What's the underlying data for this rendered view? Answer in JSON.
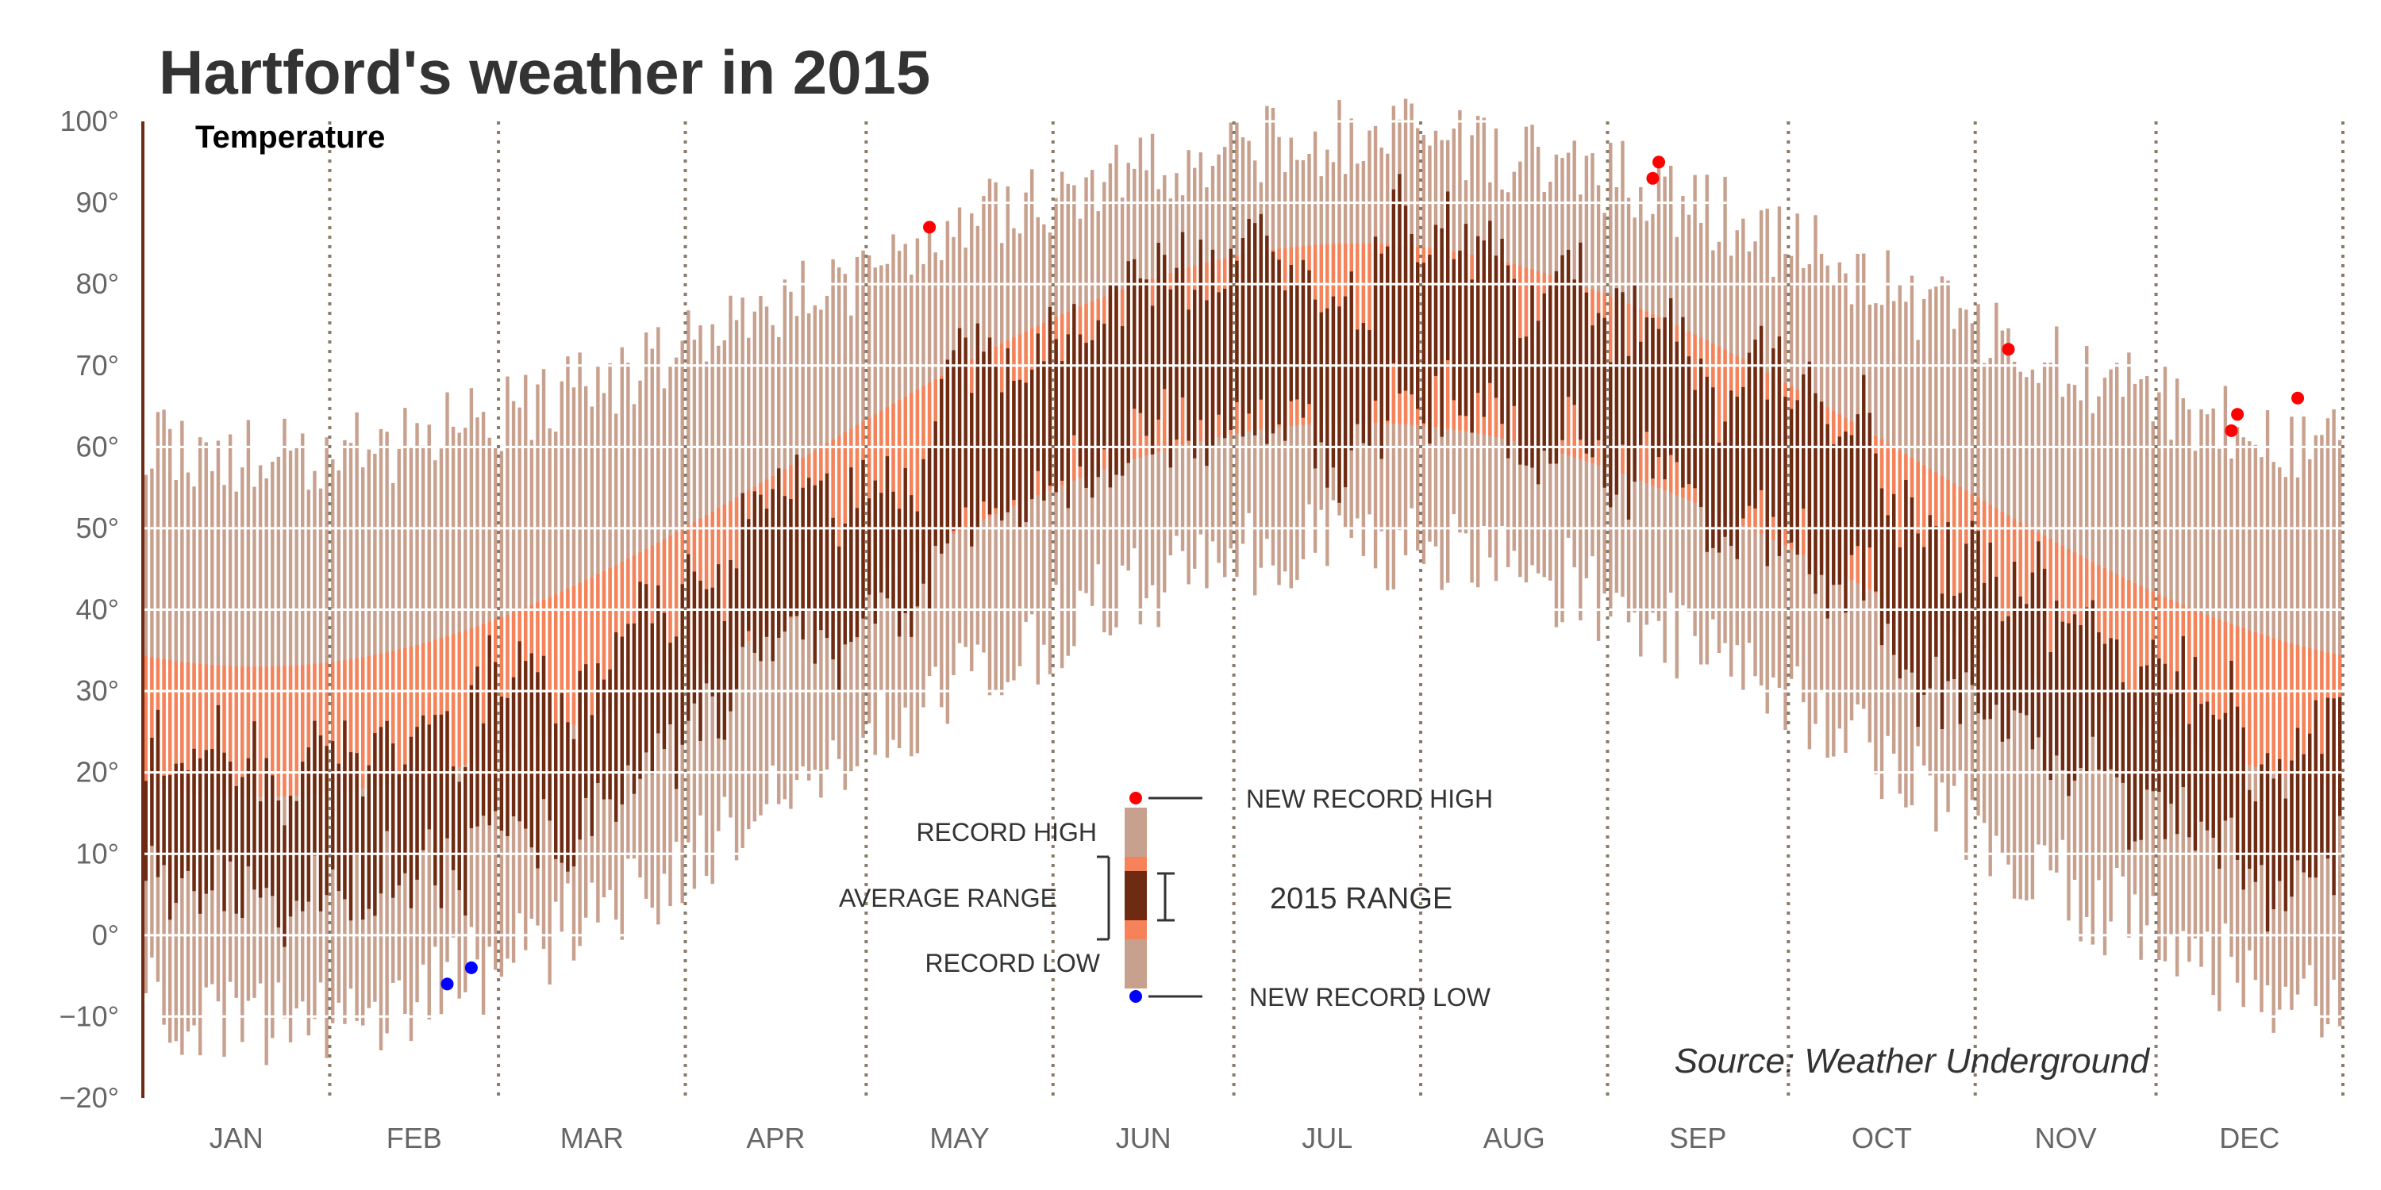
{
  "chart_data": {
    "type": "bar",
    "title": "Hartford's weather in 2015",
    "subtitle": "Temperature",
    "source": "Source: Weather Underground",
    "ylim": [
      -20,
      100
    ],
    "yticks": [
      -20,
      -10,
      0,
      10,
      20,
      30,
      40,
      50,
      60,
      70,
      80,
      90,
      100
    ],
    "ytick_labels": [
      "−20°",
      "−10°",
      "0°",
      "10°",
      "20°",
      "30°",
      "40°",
      "50°",
      "60°",
      "70°",
      "80°",
      "90°",
      "100°"
    ],
    "months": [
      "JAN",
      "FEB",
      "MAR",
      "APR",
      "MAY",
      "JUN",
      "JUL",
      "AUG",
      "SEP",
      "OCT",
      "NOV",
      "DEC"
    ],
    "month_days": [
      31,
      28,
      31,
      30,
      31,
      30,
      31,
      31,
      30,
      31,
      30,
      31
    ],
    "grid": true,
    "colors": {
      "record": "#c8a08e",
      "average": "#f58258",
      "actual": "#6e2b12",
      "record_high": "#ff0000",
      "record_low": "#0000ff",
      "grid": "#ffffff",
      "month_divider": "#8a7a66",
      "text": "#333333"
    },
    "seasonal_model": {
      "record_high": {
        "min": 59,
        "max": 98
      },
      "average_high": {
        "min": 33,
        "max": 85
      },
      "average_low": {
        "min": 17,
        "max": 63
      },
      "record_low": {
        "min": -10,
        "max": 48
      },
      "actual_high": {
        "min": 22,
        "max": 84
      },
      "actual_low": {
        "min": 5,
        "max": 64
      }
    },
    "new_record_highs": [
      {
        "date": "May 11",
        "temp": 87
      },
      {
        "date": "Sep 8",
        "temp": 93
      },
      {
        "date": "Sep 9",
        "temp": 95
      },
      {
        "date": "Nov 6",
        "temp": 72
      },
      {
        "date": "Dec 13",
        "temp": 62
      },
      {
        "date": "Dec 14",
        "temp": 64
      },
      {
        "date": "Dec 24",
        "temp": 66
      }
    ],
    "new_record_lows": [
      {
        "date": "Feb 20",
        "temp": -6
      },
      {
        "date": "Feb 24",
        "temp": -4
      }
    ],
    "legend": {
      "record_high": "RECORD HIGH",
      "average_range": "AVERAGE RANGE",
      "record_low": "RECORD LOW",
      "new_record_high": "NEW RECORD HIGH",
      "range_2015": "2015 RANGE",
      "new_record_low": "NEW RECORD LOW"
    }
  }
}
